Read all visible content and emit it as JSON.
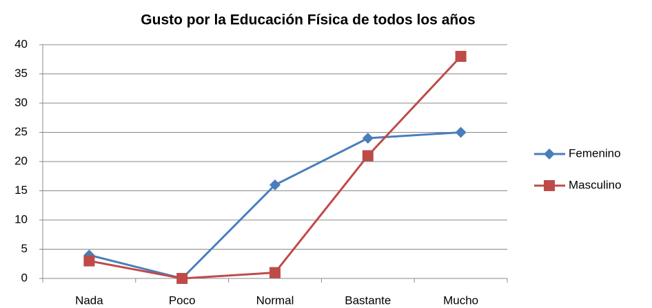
{
  "chart_data": {
    "type": "line",
    "title": "Gusto por la Educación Física de todos los años",
    "categories": [
      "Nada",
      "Poco",
      "Normal",
      "Bastante",
      "Mucho"
    ],
    "series": [
      {
        "name": "Femenino",
        "color": "#4a7ebb",
        "marker": "diamond",
        "values": [
          4,
          0,
          16,
          24,
          25
        ]
      },
      {
        "name": "Masculino",
        "color": "#be4b48",
        "marker": "square",
        "values": [
          3,
          0,
          1,
          21,
          38
        ]
      }
    ],
    "ylim": [
      0,
      40
    ],
    "yticks": [
      0,
      5,
      10,
      15,
      20,
      25,
      30,
      35,
      40
    ],
    "grid": true,
    "legend": "right"
  }
}
